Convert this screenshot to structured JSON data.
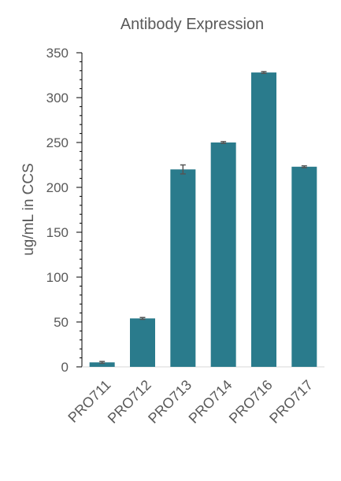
{
  "chart_data": {
    "type": "bar",
    "title": "Antibody Expression",
    "xlabel": "",
    "ylabel": "ug/mL in CCS",
    "categories": [
      "PRO711",
      "PRO712",
      "PRO713",
      "PRO714",
      "PRO716",
      "PRO717"
    ],
    "values": [
      5,
      54,
      220,
      250,
      328,
      223
    ],
    "error": [
      1,
      1,
      5,
      1,
      1,
      1
    ],
    "ylim": [
      0,
      350
    ],
    "yticks": [
      0,
      50,
      100,
      150,
      200,
      250,
      300,
      350
    ],
    "grid": false,
    "legend": "none",
    "bar_color": "#2a7b8c",
    "error_color": "#555555"
  }
}
